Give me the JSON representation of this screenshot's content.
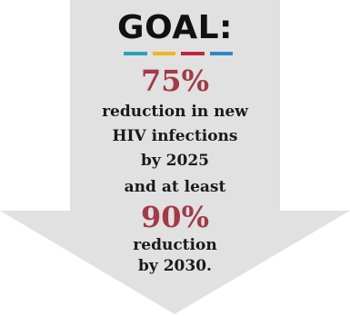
{
  "goal": {
    "title": "GOAL:",
    "bar_colors": [
      "#2aa3b8",
      "#f2b51c",
      "#c0243c",
      "#2f87c8"
    ],
    "accent_color": "#a23a48",
    "arrow_color": "#e1e1e1",
    "first_target": {
      "percent": "75%",
      "line1": "reduction in new",
      "line2": "HIV infections",
      "line3": "by 2025"
    },
    "connector": "and at least",
    "second_target": {
      "percent": "90%",
      "line1": "reduction",
      "line2": "by 2030."
    }
  }
}
